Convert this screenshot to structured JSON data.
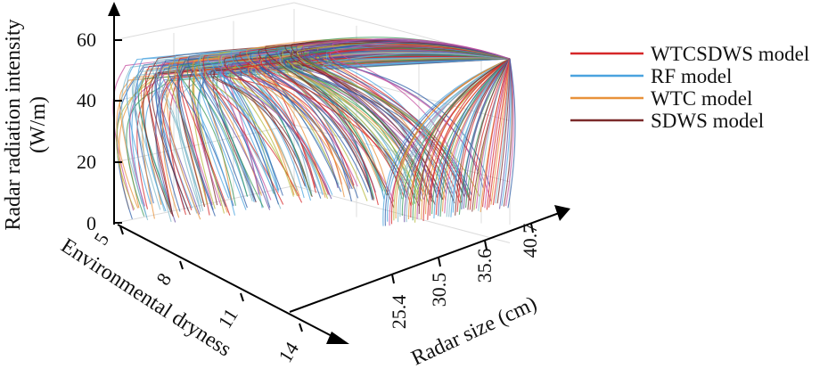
{
  "chart_data": {
    "type": "line",
    "title": "",
    "zlabel_lines": [
      "Radar radiation intensity",
      "(W/m)"
    ],
    "xlabel": "Environmental dryness",
    "ylabel": "Radar size (cm)",
    "z_ticks": [
      "0",
      "20",
      "40",
      "60"
    ],
    "x_ticks": [
      "5",
      "8",
      "11",
      "14"
    ],
    "y_ticks": [
      "25.4",
      "30.5",
      "35.6",
      "40.7"
    ],
    "zlim": [
      0,
      70
    ],
    "grid": true,
    "legend_position": "right",
    "series": [
      {
        "name": "WTCSDWS model",
        "color": "#d62728"
      },
      {
        "name": "RF model",
        "color": "#4aa3df"
      },
      {
        "name": "WTC model",
        "color": "#e8913a"
      },
      {
        "name": "SDWS model",
        "color": "#7b2a2a"
      }
    ],
    "extra_colors": [
      "#b5b83a",
      "#6a4fa3",
      "#3a9a5b",
      "#2f5fa8",
      "#c44fa0",
      "#7fb8c8"
    ]
  }
}
